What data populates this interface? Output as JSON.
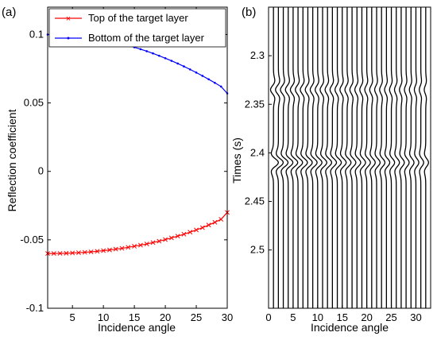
{
  "chart_data": [
    {
      "type": "line",
      "panel_label": "(a)",
      "xlabel": "Incidence angle",
      "ylabel": "Reflection coefficient",
      "xlim": [
        1,
        30
      ],
      "ylim": [
        -0.1,
        0.12
      ],
      "xticks": [
        5,
        10,
        15,
        20,
        25,
        30
      ],
      "xtick_labels": [
        "5",
        "10",
        "15",
        "20",
        "25",
        "30"
      ],
      "yticks": [
        -0.1,
        -0.05,
        0,
        0.05,
        0.1
      ],
      "ytick_labels": [
        "-0.1",
        "-0.05",
        "0",
        "0.05",
        "0.1"
      ],
      "grid": false,
      "legend_position": "top",
      "x": [
        1,
        2,
        3,
        4,
        5,
        6,
        7,
        8,
        9,
        10,
        11,
        12,
        13,
        14,
        15,
        16,
        17,
        18,
        19,
        20,
        21,
        22,
        23,
        24,
        25,
        26,
        27,
        28,
        29,
        30
      ],
      "series": [
        {
          "name": "Top of the target layer",
          "color": "#ff0000",
          "marker": "x",
          "values": [
            -0.06,
            -0.06,
            -0.0599,
            -0.0598,
            -0.0596,
            -0.0594,
            -0.0591,
            -0.0588,
            -0.0584,
            -0.0579,
            -0.0574,
            -0.0568,
            -0.0562,
            -0.0555,
            -0.0547,
            -0.0539,
            -0.053,
            -0.052,
            -0.051,
            -0.0498,
            -0.0486,
            -0.0473,
            -0.0459,
            -0.0444,
            -0.0428,
            -0.0411,
            -0.0392,
            -0.0372,
            -0.035,
            -0.03
          ]
        },
        {
          "name": "Bottom of the target layer",
          "color": "#0000ff",
          "marker": ".",
          "values": [
            0.1,
            0.1,
            0.0998,
            0.0996,
            0.0993,
            0.0989,
            0.0983,
            0.0977,
            0.097,
            0.0962,
            0.0953,
            0.0943,
            0.0932,
            0.092,
            0.0907,
            0.0893,
            0.0878,
            0.0862,
            0.0845,
            0.0827,
            0.0808,
            0.0788,
            0.0767,
            0.0745,
            0.0722,
            0.0698,
            0.0673,
            0.0647,
            0.062,
            0.057
          ]
        }
      ]
    },
    {
      "type": "wiggle",
      "panel_label": "(b)",
      "xlabel": "Incidence angle",
      "ylabel": "Times (s)",
      "xlim": [
        0,
        33
      ],
      "ylim": [
        2.25,
        2.56
      ],
      "xticks": [
        0,
        5,
        10,
        15,
        20,
        25,
        30
      ],
      "xtick_labels": [
        "0",
        "5",
        "10",
        "15",
        "20",
        "25",
        "30"
      ],
      "yticks": [
        2.3,
        2.35,
        2.4,
        2.45,
        2.5
      ],
      "ytick_labels": [
        "2.3",
        "2.35",
        "2.4",
        "2.45",
        "2.5"
      ],
      "grid": false,
      "trace_angles": [
        1,
        2,
        3,
        4,
        5,
        6,
        7,
        8,
        9,
        10,
        11,
        12,
        13,
        14,
        15,
        16,
        17,
        18,
        19,
        20,
        21,
        22,
        23,
        24,
        25,
        26,
        27,
        28,
        29,
        30,
        31,
        32
      ],
      "events": [
        {
          "time": 2.335,
          "amplitude_deg_first": -0.6,
          "amplitude_deg_last": -0.3
        },
        {
          "time": 2.41,
          "amplitude_deg_first": 1.0,
          "amplitude_deg_last": 0.57
        }
      ]
    }
  ]
}
